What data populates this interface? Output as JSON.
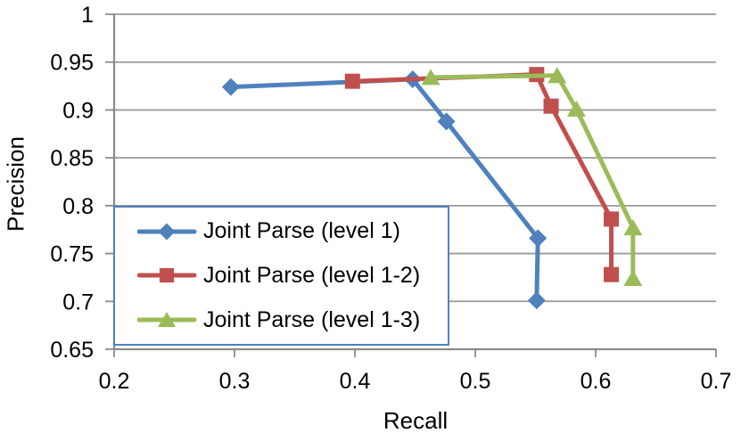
{
  "chart_data": {
    "type": "line",
    "title": "",
    "xlabel": "Recall",
    "ylabel": "Precision",
    "xlim": [
      0.2,
      0.7
    ],
    "ylim": [
      0.65,
      1.0
    ],
    "x_ticks": [
      0.2,
      0.3,
      0.4,
      0.5,
      0.6,
      0.7
    ],
    "x_tick_labels": [
      "0.2",
      "0.3",
      "0.4",
      "0.5",
      "0.6",
      "0.7"
    ],
    "y_ticks": [
      0.65,
      0.7,
      0.75,
      0.8,
      0.85,
      0.9,
      0.95,
      1.0
    ],
    "y_tick_labels": [
      "0.65",
      "0.7",
      "0.75",
      "0.8",
      "0.85",
      "0.9",
      "0.95",
      "1"
    ],
    "grid": "horizontal",
    "legend": {
      "position": "inside-bottom-left",
      "border_color": "#4F81BD",
      "background": "#FFFFFF"
    },
    "series": [
      {
        "name": "Joint Parse (level 1)",
        "color": "#4F81BD",
        "marker": "diamond",
        "points": [
          [
            0.297,
            0.924
          ],
          [
            0.448,
            0.932
          ],
          [
            0.476,
            0.888
          ],
          [
            0.552,
            0.766
          ],
          [
            0.551,
            0.701
          ]
        ]
      },
      {
        "name": "Joint Parse (level 1-2)",
        "color": "#C0504D",
        "marker": "square",
        "points": [
          [
            0.398,
            0.93
          ],
          [
            0.551,
            0.937
          ],
          [
            0.563,
            0.904
          ],
          [
            0.613,
            0.786
          ],
          [
            0.613,
            0.728
          ]
        ]
      },
      {
        "name": "Joint Parse (level 1-3)",
        "color": "#9BBB59",
        "marker": "triangle",
        "points": [
          [
            0.463,
            0.934
          ],
          [
            0.568,
            0.936
          ],
          [
            0.584,
            0.901
          ],
          [
            0.631,
            0.777
          ],
          [
            0.631,
            0.724
          ]
        ]
      }
    ],
    "colors": {
      "axis": "#8A8A8A",
      "grid": "#9A9A9A",
      "text": "#000000",
      "background": "#FFFFFF"
    }
  }
}
